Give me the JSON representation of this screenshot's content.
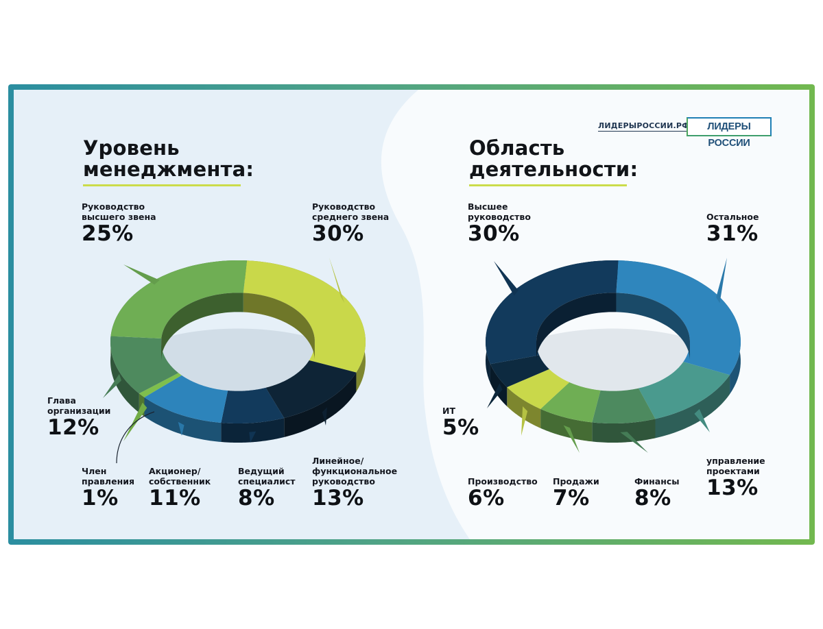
{
  "brand": {
    "url": "ЛИДЕРЫРОССИИ.РФ",
    "logo_text": "ЛИДЕРЫ РОССИИ"
  },
  "charts": [
    {
      "title_line1": "Уровень",
      "title_line2": "менеджмента:"
    },
    {
      "title_line1": "Область",
      "title_line2": "деятельности:"
    }
  ],
  "chart_data": [
    {
      "type": "pie",
      "title": "Уровень менеджмента:",
      "categories": [
        "Руководство среднего звена",
        "Линейное/ функциональное руководство",
        "Ведущий специалист",
        "Акционер/ собственник",
        "Член правления",
        "Глава организации",
        "Руководство высшего звена"
      ],
      "values": [
        30,
        13,
        8,
        11,
        1,
        12,
        25
      ],
      "unit": "%",
      "colors": [
        "#c9d84a",
        "#0e2436",
        "#123a5c",
        "#2d84bb",
        "#7fbf4d",
        "#4e8a5e",
        "#6fae54"
      ],
      "labels": [
        {
          "cap": "Руководство\nсреднего звена",
          "pct": "30%"
        },
        {
          "cap": "Линейное/\nфункциональное\nруководство",
          "pct": "13%"
        },
        {
          "cap": "Ведущий\nспециалист",
          "pct": "8%"
        },
        {
          "cap": "Акционер/\nсобственник",
          "pct": "11%"
        },
        {
          "cap": "Член\nправления",
          "pct": "1%"
        },
        {
          "cap": "Глава\nорганизации",
          "pct": "12%"
        },
        {
          "cap": "Руководство\nвысшего звена",
          "pct": "25%"
        }
      ]
    },
    {
      "type": "pie",
      "title": "Область деятельности:",
      "categories": [
        "Остальное",
        "управление проектами",
        "Финансы",
        "Продажи",
        "Производство",
        "ИТ",
        "Высшее руководство"
      ],
      "values": [
        31,
        13,
        8,
        7,
        6,
        5,
        30
      ],
      "unit": "%",
      "colors": [
        "#2f86bd",
        "#4a9a8e",
        "#4d8a5f",
        "#6fae54",
        "#c9d84a",
        "#0d2a40",
        "#123a5c"
      ],
      "labels": [
        {
          "cap": "Остальное",
          "pct": "31%"
        },
        {
          "cap": "управление\nпроектами",
          "pct": "13%"
        },
        {
          "cap": "Финансы",
          "pct": "8%"
        },
        {
          "cap": "Продажи",
          "pct": "7%"
        },
        {
          "cap": "Производство",
          "pct": "6%"
        },
        {
          "cap": "ИТ",
          "pct": "5%"
        },
        {
          "cap": "Высшее\nруководство",
          "pct": "30%"
        }
      ]
    }
  ]
}
